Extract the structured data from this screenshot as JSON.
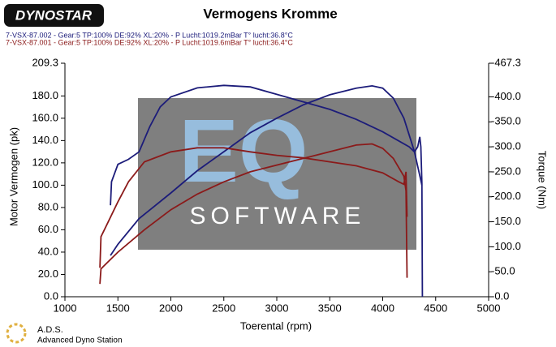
{
  "logo": "DYNOSTAR",
  "footer": {
    "title": "A.D.S.",
    "subtitle": "Advanced Dyno Station"
  },
  "watermark": {
    "letters": "EQ",
    "text": "SOFTWARE"
  },
  "chart_data": {
    "type": "line",
    "title": "Vermogens Kromme",
    "x_label": "Toerental (rpm)",
    "y_label": "Motor Vermogen (pk)",
    "y2_label": "Torque (Nm)",
    "xlim": [
      1000,
      5000
    ],
    "xticks": [
      1000,
      1500,
      2000,
      2500,
      3000,
      3500,
      4000,
      4500,
      5000
    ],
    "ylim": [
      0,
      209.3
    ],
    "yticks": [
      {
        "value": 0,
        "label": "0.0"
      },
      {
        "value": 20,
        "label": "20.0"
      },
      {
        "value": 40,
        "label": "40.0"
      },
      {
        "value": 60,
        "label": "60.0"
      },
      {
        "value": 80,
        "label": "80.0"
      },
      {
        "value": 100,
        "label": "100.0"
      },
      {
        "value": 120,
        "label": "120.0"
      },
      {
        "value": 140,
        "label": "140.0"
      },
      {
        "value": 160,
        "label": "160.0"
      },
      {
        "value": 180,
        "label": "180.0"
      },
      209.3
    ],
    "y2lim": [
      0,
      467.3
    ],
    "y2ticks": [
      {
        "value": 0,
        "label": "-0.0"
      },
      {
        "value": 50,
        "label": "-50.0"
      },
      {
        "value": 100,
        "label": "-100.0"
      },
      {
        "value": 150,
        "label": "-150.0"
      },
      {
        "value": 200,
        "label": "-200.0"
      },
      {
        "value": 250,
        "label": "-250.0"
      },
      {
        "value": 300,
        "label": "-300.0"
      },
      {
        "value": 350,
        "label": "-350.0"
      },
      {
        "value": 400,
        "label": "-400.0"
      },
      {
        "value": 467.3,
        "label": "-467.3"
      }
    ],
    "series": [
      {
        "name": "7-VSX-87.002 - Gear:5 TP:100% DE:92% XL:20%   - P Lucht:1019.2mBar T° lucht:36.8°C",
        "color": "#1c1c7a",
        "power": {
          "x": [
            1430,
            1500,
            1700,
            2000,
            2250,
            2500,
            2750,
            3000,
            3250,
            3500,
            3750,
            3900,
            4000,
            4100,
            4200,
            4300,
            4370
          ],
          "values": [
            37,
            47,
            70,
            93,
            113,
            130,
            147,
            160,
            172,
            181,
            187,
            189,
            187,
            178,
            160,
            130,
            100
          ]
        },
        "torque": {
          "axis": "y2",
          "x": [
            1430,
            1440,
            1500,
            1600,
            1700,
            1800,
            1900,
            2000,
            2250,
            2500,
            2750,
            3000,
            3250,
            3500,
            3750,
            4000,
            4250,
            4300,
            4330,
            4350,
            4360,
            4370,
            4375
          ],
          "values": [
            183,
            230,
            265,
            275,
            290,
            340,
            380,
            400,
            418,
            423,
            420,
            405,
            390,
            375,
            355,
            330,
            300,
            290,
            300,
            320,
            300,
            227,
            0
          ]
        }
      },
      {
        "name": "7-VSX-87.001 - Gear:5 TP:100% DE:92% XL:20%   - P Lucht:1019.6mBar T° lucht:36.4°C",
        "color": "#8b1a1a",
        "power": {
          "x": [
            1330,
            1340,
            1500,
            1750,
            2000,
            2250,
            2500,
            2750,
            3000,
            3250,
            3500,
            3750,
            3900,
            4000,
            4100,
            4200,
            4220,
            4230
          ],
          "values": [
            11.5,
            25,
            40,
            60,
            78,
            92,
            103,
            112,
            118,
            124,
            130,
            136,
            137,
            133,
            124,
            108,
            95,
            17
          ]
        },
        "torque": {
          "axis": "y2",
          "x": [
            1330,
            1340,
            1500,
            1600,
            1750,
            2000,
            2250,
            2500,
            2750,
            3000,
            3250,
            3500,
            3750,
            4000,
            4150,
            4200,
            4220,
            4230
          ],
          "values": [
            58,
            120,
            190,
            230,
            270,
            290,
            298,
            298,
            290,
            283,
            278,
            270,
            262,
            248,
            230,
            225,
            250,
            160
          ]
        }
      }
    ]
  }
}
